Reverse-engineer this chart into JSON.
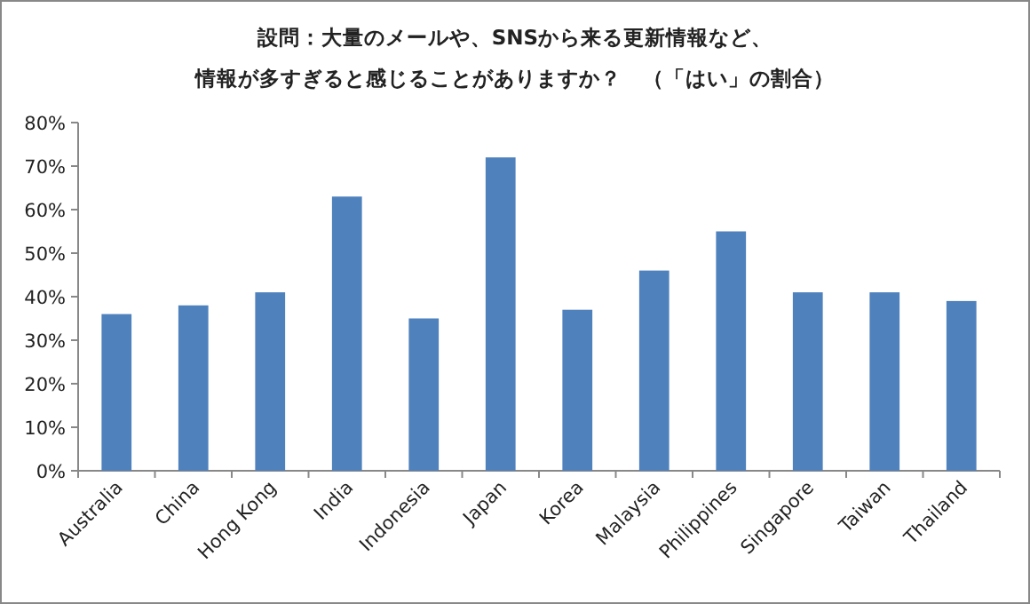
{
  "chart_data": {
    "type": "bar",
    "title": "設問：大量のメールや、SNSから来る更新情報など、",
    "subtitle": "情報が多すぎると感じることがありますか？　（「はい」の割合）",
    "categories": [
      "Australia",
      "China",
      "Hong Kong",
      "India",
      "Indonesia",
      "Japan",
      "Korea",
      "Malaysia",
      "Philippines",
      "Singapore",
      "Taiwan",
      "Thailand"
    ],
    "values": [
      36,
      38,
      41,
      63,
      35,
      72,
      37,
      46,
      55,
      41,
      41,
      39
    ],
    "color": "#4f81bd",
    "ylim": [
      0,
      80
    ],
    "yticks": [
      {
        "value": 0,
        "label": "0%"
      },
      {
        "value": 10,
        "label": "10%"
      },
      {
        "value": 20,
        "label": "20%"
      },
      {
        "value": 30,
        "label": "30%"
      },
      {
        "value": 40,
        "label": "40%"
      },
      {
        "value": 50,
        "label": "50%"
      },
      {
        "value": 60,
        "label": "60%"
      },
      {
        "value": 70,
        "label": "70%"
      },
      {
        "value": 80,
        "label": "80%"
      }
    ],
    "grid": false
  }
}
